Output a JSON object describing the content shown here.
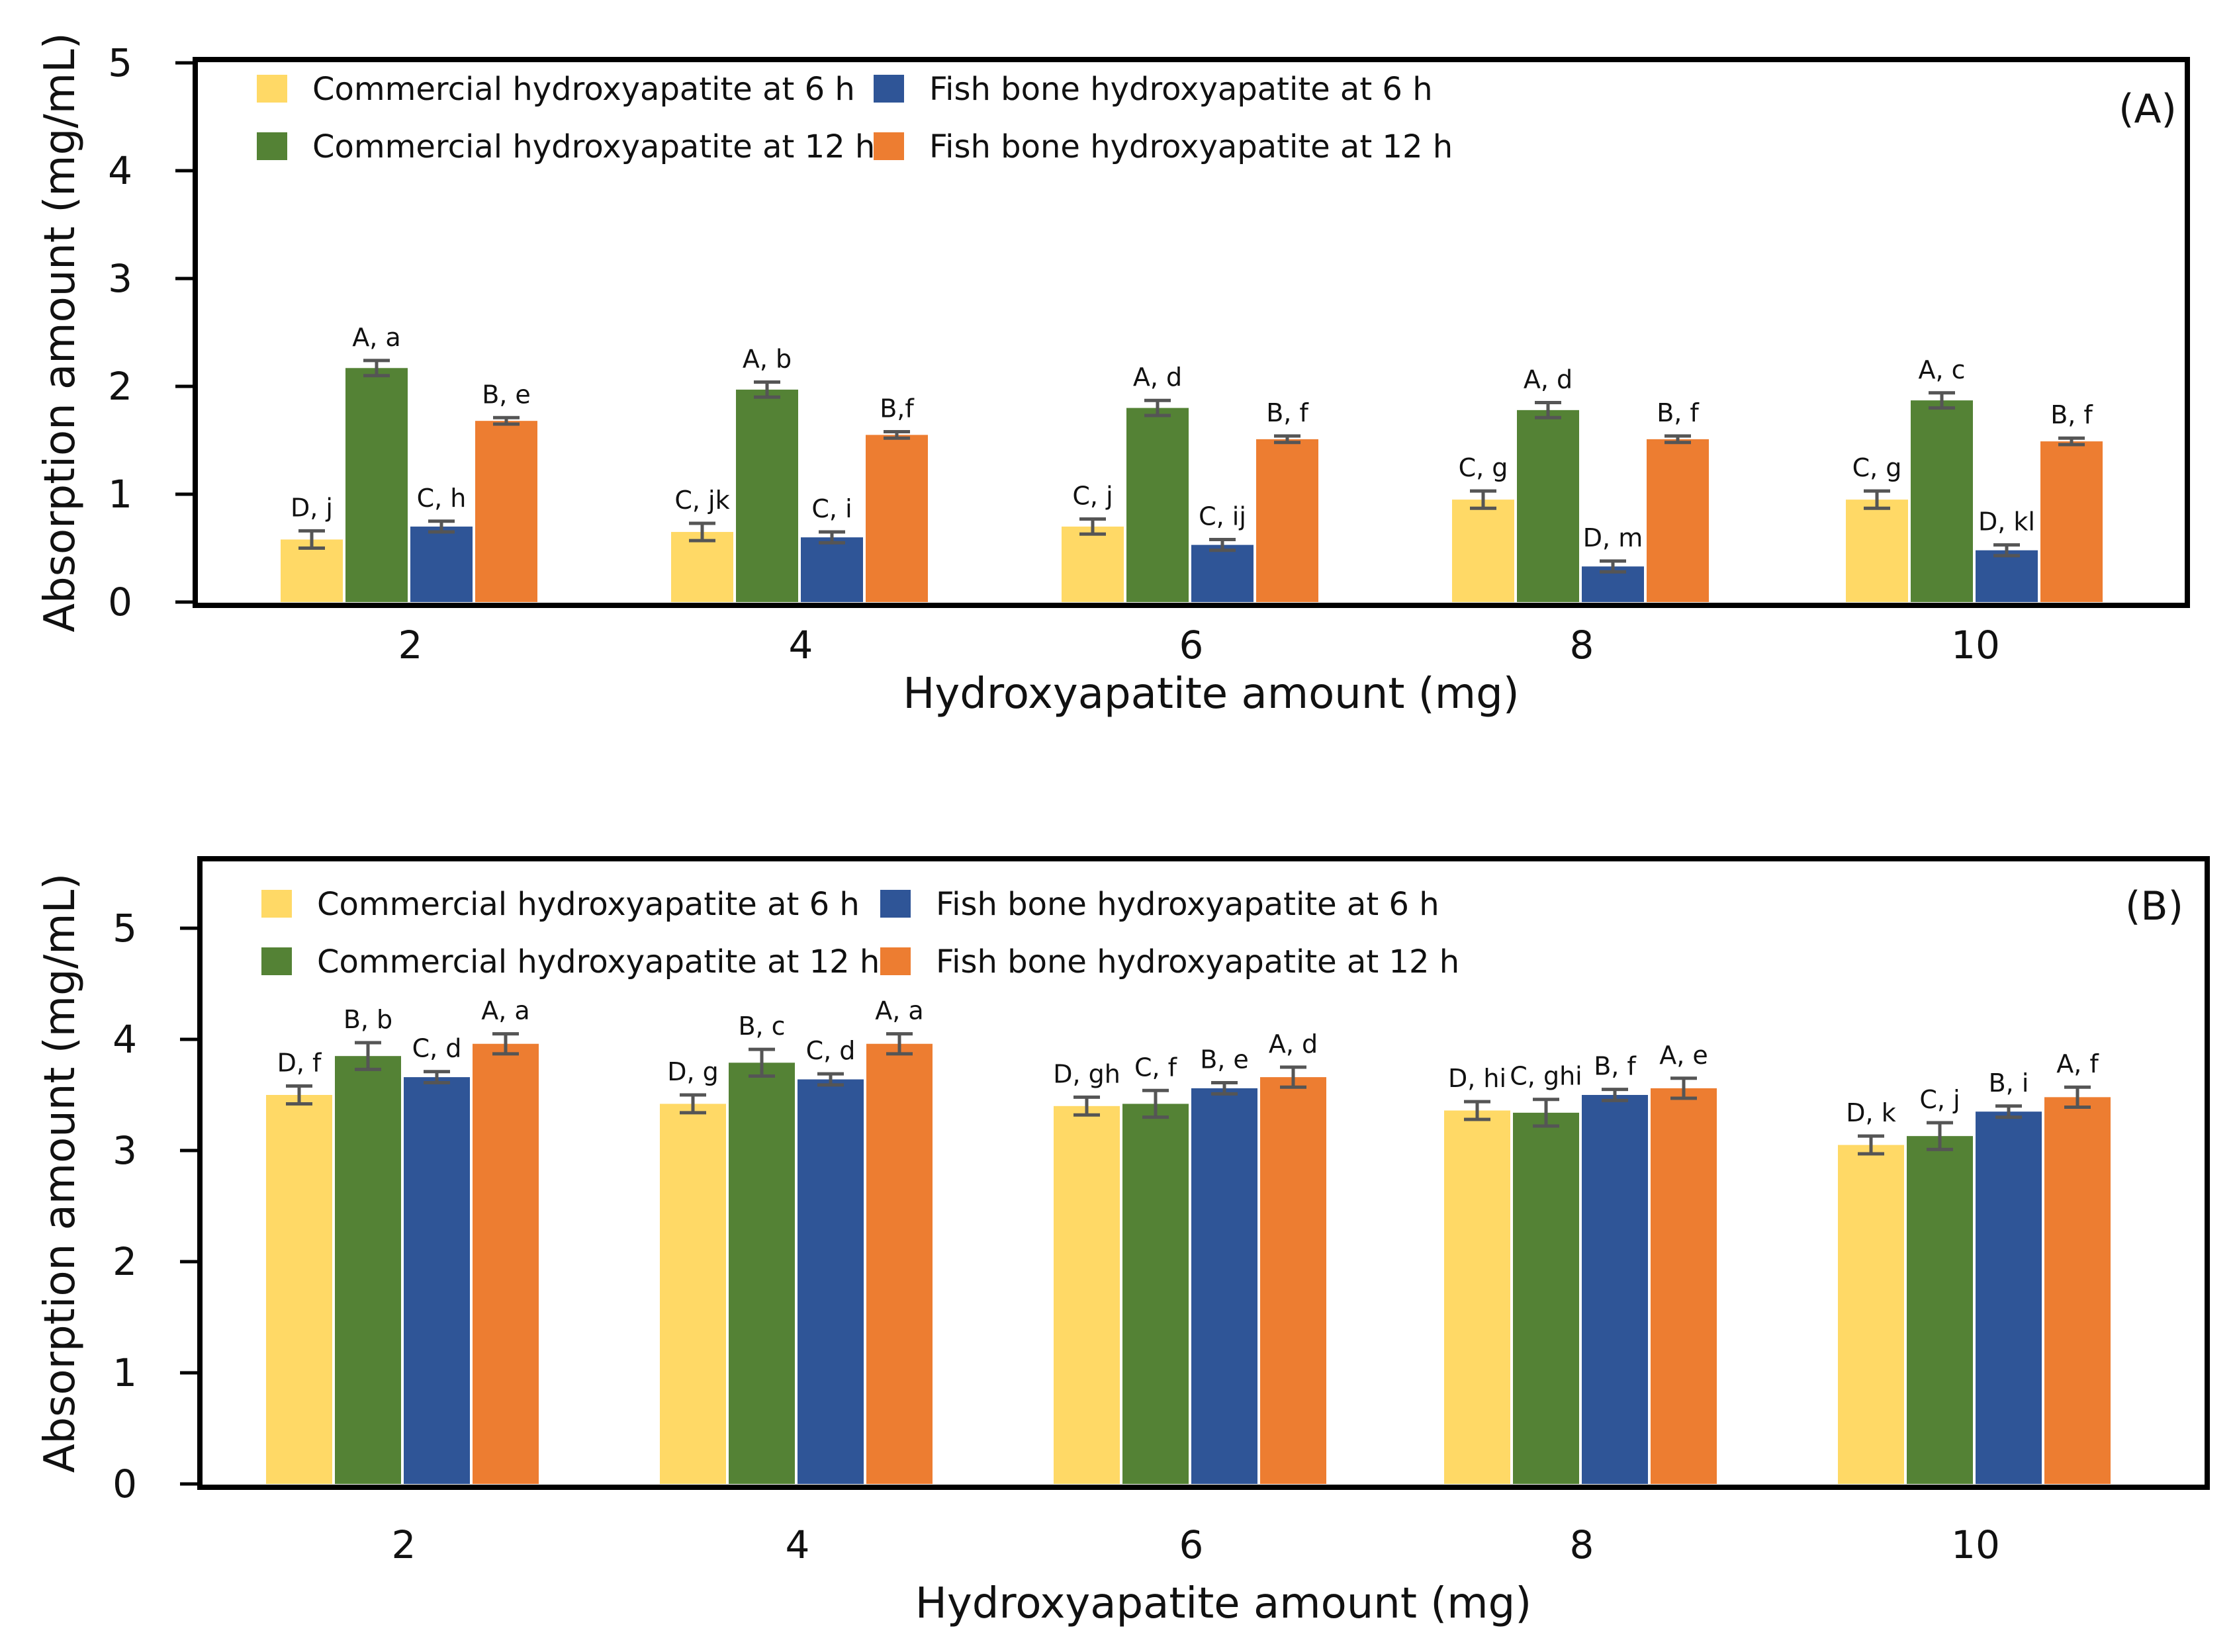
{
  "colors": {
    "commercial_6h": "#FFD966",
    "commercial_12h": "#548235",
    "fish_6h": "#2F5597",
    "fish_12h": "#ED7D31",
    "error_bar": "#555555",
    "frame": "#000000"
  },
  "chart_data": [
    {
      "type": "bar",
      "panel_label": "(A)",
      "xlabel": "Hydroxyapatite amount (mg)",
      "ylabel": "Absorption amount (mg/mL)",
      "ylim": [
        0,
        5
      ],
      "yticks": [
        "0",
        "1",
        "2",
        "3",
        "4",
        "5"
      ],
      "categories": [
        "2",
        "4",
        "6",
        "8",
        "10"
      ],
      "legend_position": "top-left",
      "series": [
        {
          "key": "commercial_6h",
          "name": "Commercial hydroxyapatite at 6 h",
          "values": [
            0.58,
            0.65,
            0.7,
            0.95,
            0.95
          ],
          "errors": [
            0.08,
            0.08,
            0.07,
            0.08,
            0.08
          ],
          "labels": [
            "D, j",
            "C, jk",
            "C, j",
            "C, g",
            "C, g"
          ]
        },
        {
          "key": "commercial_12h",
          "name": "Commercial hydroxyapatite at 12 h",
          "values": [
            2.17,
            1.97,
            1.8,
            1.78,
            1.87
          ],
          "errors": [
            0.07,
            0.07,
            0.07,
            0.07,
            0.07
          ],
          "labels": [
            "A, a",
            "A, b",
            "A, d",
            "A, d",
            "A, c"
          ]
        },
        {
          "key": "fish_6h",
          "name": "Fish bone hydroxyapatite at 6 h",
          "values": [
            0.7,
            0.6,
            0.53,
            0.33,
            0.48
          ],
          "errors": [
            0.05,
            0.05,
            0.05,
            0.05,
            0.05
          ],
          "labels": [
            "C, h",
            "C, i",
            "C, ij",
            "D, m",
            "D, kl"
          ]
        },
        {
          "key": "fish_12h",
          "name": "Fish bone hydroxyapatite at 12 h",
          "values": [
            1.68,
            1.55,
            1.51,
            1.51,
            1.49
          ],
          "errors": [
            0.03,
            0.03,
            0.03,
            0.03,
            0.03
          ],
          "labels": [
            "B, e",
            "B,f",
            "B, f",
            "B, f",
            "B, f"
          ]
        }
      ]
    },
    {
      "type": "bar",
      "panel_label": "(B)",
      "xlabel": "Hydroxyapatite amount (mg)",
      "ylabel": "Absorption amount (mg/mL)",
      "ylim": [
        0,
        5.5
      ],
      "yticks": [
        "0",
        "1",
        "2",
        "3",
        "4",
        "5"
      ],
      "categories": [
        "2",
        "4",
        "6",
        "8",
        "10"
      ],
      "legend_position": "top-left",
      "series": [
        {
          "key": "commercial_6h",
          "name": "Commercial hydroxyapatite at 6 h",
          "values": [
            3.5,
            3.42,
            3.4,
            3.36,
            3.05
          ],
          "errors": [
            0.08,
            0.08,
            0.08,
            0.08,
            0.08
          ],
          "labels": [
            "D, f",
            "D, g",
            "D, gh",
            "D, hi",
            "D, k"
          ]
        },
        {
          "key": "commercial_12h",
          "name": "Commercial hydroxyapatite at 12 h",
          "values": [
            3.85,
            3.79,
            3.42,
            3.34,
            3.13
          ],
          "errors": [
            0.12,
            0.12,
            0.12,
            0.12,
            0.12
          ],
          "labels": [
            "B, b",
            "B, c",
            "C, f",
            "C, ghi",
            "C, j"
          ]
        },
        {
          "key": "fish_6h",
          "name": "Fish bone hydroxyapatite at 6 h",
          "values": [
            3.66,
            3.64,
            3.56,
            3.5,
            3.35
          ],
          "errors": [
            0.05,
            0.05,
            0.05,
            0.05,
            0.05
          ],
          "labels": [
            "C, d",
            "C, d",
            "B, e",
            "B, f",
            "B, i"
          ]
        },
        {
          "key": "fish_12h",
          "name": "Fish bone hydroxyapatite at 12 h",
          "values": [
            3.96,
            3.96,
            3.66,
            3.56,
            3.48
          ],
          "errors": [
            0.09,
            0.09,
            0.09,
            0.09,
            0.09
          ],
          "labels": [
            "A, a",
            "A, a",
            "A, d",
            "A, e",
            "A, f"
          ]
        }
      ]
    }
  ]
}
